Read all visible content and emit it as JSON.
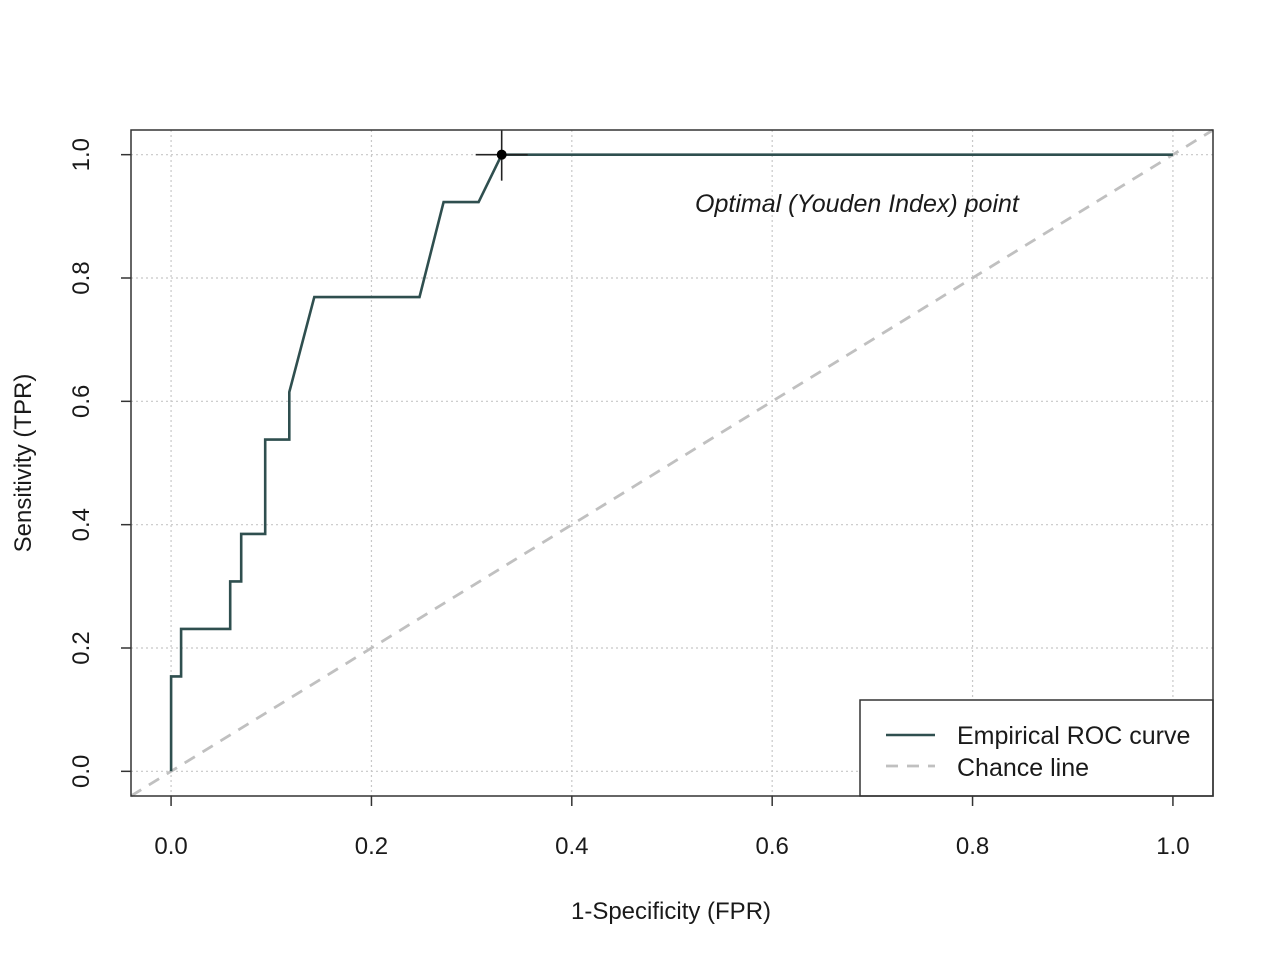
{
  "chart_data": {
    "type": "line",
    "xlabel": "1-Specificity (FPR)",
    "ylabel": "Sensitivity (TPR)",
    "xlim": [
      -0.04,
      1.04
    ],
    "ylim": [
      -0.04,
      1.04
    ],
    "x_ticks": [
      "0.0",
      "0.2",
      "0.4",
      "0.6",
      "0.8",
      "1.0"
    ],
    "y_ticks": [
      "0.0",
      "0.2",
      "0.4",
      "0.6",
      "0.8",
      "1.0"
    ],
    "grid": true,
    "legend_position": "bottom-right",
    "series": [
      {
        "name": "Empirical ROC curve",
        "color": "#2f4f4f",
        "style": "solid",
        "x": [
          0.0,
          0.0,
          0.01,
          0.01,
          0.059,
          0.059,
          0.07,
          0.07,
          0.094,
          0.094,
          0.118,
          0.118,
          0.143,
          0.248,
          0.272,
          0.307,
          0.33,
          0.33,
          1.0
        ],
        "y": [
          0.0,
          0.154,
          0.154,
          0.231,
          0.231,
          0.308,
          0.308,
          0.385,
          0.385,
          0.538,
          0.538,
          0.615,
          0.769,
          0.769,
          0.923,
          0.923,
          1.0,
          1.0,
          1.0
        ]
      },
      {
        "name": "Chance line",
        "color": "#c0c0c0",
        "style": "dashed",
        "x": [
          -0.04,
          1.04
        ],
        "y": [
          -0.04,
          1.04
        ]
      }
    ],
    "optimal_point": {
      "x": 0.33,
      "y": 1.0
    },
    "annotations": [
      {
        "text": "Optimal (Youden Index) point",
        "x": 0.53,
        "y": 0.915
      }
    ]
  }
}
